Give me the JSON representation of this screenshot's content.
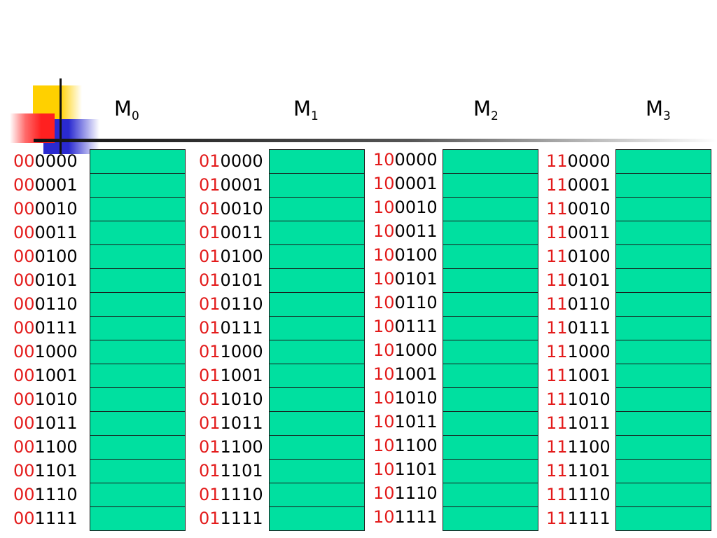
{
  "colors": {
    "address_high_bits": "#e31b1b",
    "address_low_bits": "#000000",
    "cell_fill": "#00e0a0",
    "cell_border": "#1a1a1a",
    "deco_yellow": "#ffd000",
    "deco_blue": "#2a2ad0",
    "deco_red": "#ff2020"
  },
  "modules": [
    {
      "name": "M",
      "index": "0",
      "addresses": [
        {
          "high": "00",
          "low": "0000"
        },
        {
          "high": "00",
          "low": "0001"
        },
        {
          "high": "00",
          "low": "0010"
        },
        {
          "high": "00",
          "low": "0011"
        },
        {
          "high": "00",
          "low": "0100"
        },
        {
          "high": "00",
          "low": "0101"
        },
        {
          "high": "00",
          "low": "0110"
        },
        {
          "high": "00",
          "low": "0111"
        },
        {
          "high": "00",
          "low": "1000"
        },
        {
          "high": "00",
          "low": "1001"
        },
        {
          "high": "00",
          "low": "1010"
        },
        {
          "high": "00",
          "low": "1011"
        },
        {
          "high": "00",
          "low": "1100"
        },
        {
          "high": "00",
          "low": "1101"
        },
        {
          "high": "00",
          "low": "1110"
        },
        {
          "high": "00",
          "low": "1111"
        }
      ]
    },
    {
      "name": "M",
      "index": "1",
      "addresses": [
        {
          "high": "01",
          "low": "0000"
        },
        {
          "high": "01",
          "low": "0001"
        },
        {
          "high": "01",
          "low": "0010"
        },
        {
          "high": "01",
          "low": "0011"
        },
        {
          "high": "01",
          "low": "0100"
        },
        {
          "high": "01",
          "low": "0101"
        },
        {
          "high": "01",
          "low": "0110"
        },
        {
          "high": "01",
          "low": "0111"
        },
        {
          "high": "01",
          "low": "1000"
        },
        {
          "high": "01",
          "low": "1001"
        },
        {
          "high": "01",
          "low": "1010"
        },
        {
          "high": "01",
          "low": "1011"
        },
        {
          "high": "01",
          "low": "1100"
        },
        {
          "high": "01",
          "low": "1101"
        },
        {
          "high": "01",
          "low": "1110"
        },
        {
          "high": "01",
          "low": "1111"
        }
      ]
    },
    {
      "name": "M",
      "index": "2",
      "addresses": [
        {
          "high": "10",
          "low": "0000"
        },
        {
          "high": "10",
          "low": "0001"
        },
        {
          "high": "10",
          "low": "0010"
        },
        {
          "high": "10",
          "low": "0011"
        },
        {
          "high": "10",
          "low": "0100"
        },
        {
          "high": "10",
          "low": "0101"
        },
        {
          "high": "10",
          "low": "0110"
        },
        {
          "high": "10",
          "low": "0111"
        },
        {
          "high": "10",
          "low": "1000"
        },
        {
          "high": "10",
          "low": "1001"
        },
        {
          "high": "10",
          "low": "1010"
        },
        {
          "high": "10",
          "low": "1011"
        },
        {
          "high": "10",
          "low": "1100"
        },
        {
          "high": "10",
          "low": "1101"
        },
        {
          "high": "10",
          "low": "1110"
        },
        {
          "high": "10",
          "low": "1111"
        }
      ]
    },
    {
      "name": "M",
      "index": "3",
      "addresses": [
        {
          "high": "11",
          "low": "0000"
        },
        {
          "high": "11",
          "low": "0001"
        },
        {
          "high": "11",
          "low": "0010"
        },
        {
          "high": "11",
          "low": "0011"
        },
        {
          "high": "11",
          "low": "0100"
        },
        {
          "high": "11",
          "low": "0101"
        },
        {
          "high": "11",
          "low": "0110"
        },
        {
          "high": "11",
          "low": "0111"
        },
        {
          "high": "11",
          "low": "1000"
        },
        {
          "high": "11",
          "low": "1001"
        },
        {
          "high": "11",
          "low": "1010"
        },
        {
          "high": "11",
          "low": "1011"
        },
        {
          "high": "11",
          "low": "1100"
        },
        {
          "high": "11",
          "low": "1101"
        },
        {
          "high": "11",
          "low": "1110"
        },
        {
          "high": "11",
          "low": "1111"
        }
      ]
    }
  ]
}
